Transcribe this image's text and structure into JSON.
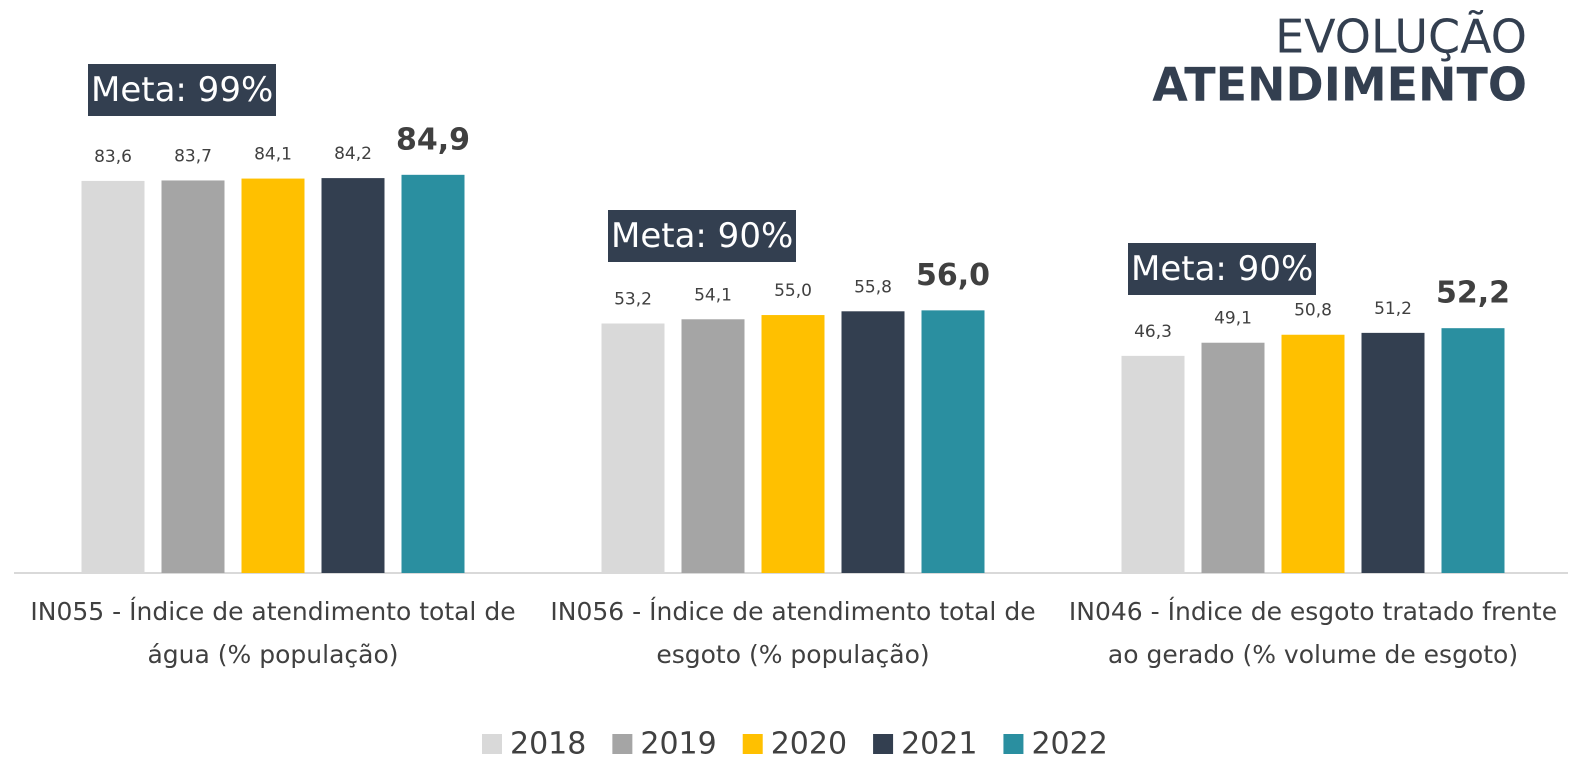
{
  "chart_data": {
    "type": "bar",
    "title": "EVOLUÇÃO",
    "subtitle": "ATENDIMENTO",
    "categories": [
      "IN055 - Índice de atendimento total de água (% população)",
      "IN056 - Índice de atendimento total de esgoto (% população)",
      "IN046 - Índice de esgoto tratado frente ao gerado  (% volume de esgoto)"
    ],
    "annotations": [
      "Meta: 99%",
      "Meta: 90%",
      "Meta: 90%"
    ],
    "series": [
      {
        "name": "2018",
        "color": "#d9d9d9",
        "values": [
          83.6,
          53.2,
          46.3
        ],
        "value_labels": [
          "83,6",
          "53,2",
          "46,3"
        ]
      },
      {
        "name": "2019",
        "color": "#a5a5a5",
        "values": [
          83.7,
          54.1,
          49.1
        ],
        "value_labels": [
          "83,7",
          "54,1",
          "49,1"
        ]
      },
      {
        "name": "2020",
        "color": "#ffc000",
        "values": [
          84.1,
          55.0,
          50.8
        ],
        "value_labels": [
          "84,1",
          "55,0",
          "50,8"
        ]
      },
      {
        "name": "2021",
        "color": "#333f50",
        "values": [
          84.2,
          55.8,
          51.2
        ],
        "value_labels": [
          "84,2",
          "55,8",
          "51,2"
        ]
      },
      {
        "name": "2022",
        "color": "#2a8fa0",
        "values": [
          84.9,
          56.0,
          52.2
        ],
        "value_labels": [
          "84,9",
          "56,0",
          "52,2"
        ]
      }
    ],
    "ylim": [
      0,
      100
    ],
    "legend": "bottom"
  }
}
